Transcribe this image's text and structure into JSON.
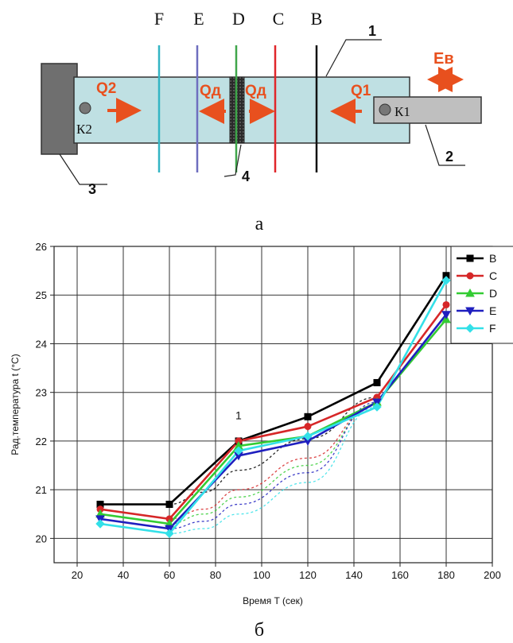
{
  "diagram": {
    "line_labels": [
      "F",
      "E",
      "D",
      "C",
      "B"
    ],
    "line_colors": [
      "#33b5c4",
      "#6e6ebf",
      "#3fa64a",
      "#e0262a",
      "#111111"
    ],
    "num_1": "1",
    "num_2": "2",
    "num_3": "3",
    "num_4": "4",
    "q2_label": "Q2",
    "qd_left_label": "Qд",
    "qd_right_label": "Qд",
    "q1_label": "Q1",
    "ev_label": "Eв",
    "k2_label": "К2",
    "k1_label": "К1",
    "caption_a": "а",
    "arrow_color": "#e8501e",
    "tube_color": "#bfe0e3"
  },
  "chart_data": {
    "type": "line",
    "x": [
      30,
      60,
      90,
      120,
      150,
      180
    ],
    "series": [
      {
        "name": "B",
        "color": "#000000",
        "marker": "square",
        "values": [
          20.7,
          20.7,
          22.0,
          22.5,
          23.2,
          25.4
        ]
      },
      {
        "name": "C",
        "color": "#d62728",
        "marker": "circle",
        "values": [
          20.6,
          20.4,
          22.0,
          22.3,
          22.9,
          24.8
        ]
      },
      {
        "name": "D",
        "color": "#33cc33",
        "marker": "triangle-up",
        "values": [
          20.5,
          20.3,
          21.9,
          22.1,
          22.8,
          24.5
        ]
      },
      {
        "name": "E",
        "color": "#1f1fbf",
        "marker": "triangle-down",
        "values": [
          20.4,
          20.2,
          21.7,
          22.0,
          22.8,
          24.6
        ]
      },
      {
        "name": "F",
        "color": "#33e0e8",
        "marker": "diamond",
        "values": [
          20.3,
          20.1,
          21.8,
          22.1,
          22.7,
          25.3
        ]
      }
    ],
    "dotted_curves": [
      {
        "color": "#000000",
        "values": [
          20.7,
          20.95,
          21.4,
          22.05,
          22.9
        ]
      },
      {
        "color": "#d62728",
        "values": [
          20.4,
          20.6,
          21.0,
          21.65,
          22.75
        ]
      },
      {
        "color": "#33cc33",
        "values": [
          20.3,
          20.5,
          20.85,
          21.5,
          22.75
        ]
      },
      {
        "color": "#1f1fbf",
        "values": [
          20.2,
          20.35,
          20.7,
          21.35,
          22.8
        ]
      },
      {
        "color": "#33e0e8",
        "values": [
          20.1,
          20.2,
          20.5,
          21.15,
          22.7
        ]
      }
    ],
    "dotted_x": [
      60,
      75,
      90,
      120,
      150
    ],
    "xlim": [
      10,
      200
    ],
    "ylim": [
      19.5,
      26
    ],
    "x_ticks": [
      20,
      40,
      60,
      80,
      100,
      120,
      140,
      160,
      180,
      200
    ],
    "y_ticks": [
      20,
      21,
      22,
      23,
      24,
      25,
      26
    ],
    "xlabel": "Время T (сек)",
    "ylabel": "Рад.температура t (°C)",
    "annotation": "1",
    "annotation_x": 90,
    "annotation_y": 22.45,
    "grid": true,
    "legend_position": "top-right"
  },
  "caption_b": "б"
}
